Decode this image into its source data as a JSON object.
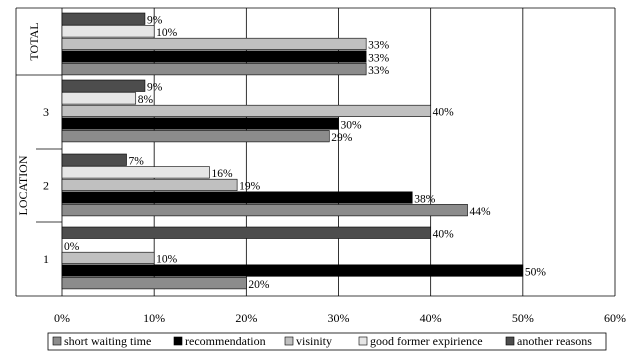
{
  "chart_data": {
    "type": "bar",
    "orientation": "horizontal",
    "ylabel": "LOCATION",
    "xlim": [
      0,
      60
    ],
    "xticks": [
      "0%",
      "10%",
      "20%",
      "30%",
      "40%",
      "50%",
      "60%"
    ],
    "grid": true,
    "legend_position": "bottom",
    "groups": [
      {
        "label": "TOTAL",
        "label_vertical": true,
        "series": [
          {
            "name": "another reasons",
            "value": 9,
            "label": "9%"
          },
          {
            "name": "good former expirience",
            "value": 10,
            "label": "10%"
          },
          {
            "name": "visinity",
            "value": 33,
            "label": "33%"
          },
          {
            "name": "recommendation",
            "value": 33,
            "label": "33%"
          },
          {
            "name": "short waiting time",
            "value": 33,
            "label": "33%"
          }
        ]
      },
      {
        "label": "3",
        "label_vertical": false,
        "series": [
          {
            "name": "another reasons",
            "value": 9,
            "label": "9%"
          },
          {
            "name": "good former expirience",
            "value": 8,
            "label": "8%"
          },
          {
            "name": "visinity",
            "value": 40,
            "label": "40%"
          },
          {
            "name": "recommendation",
            "value": 30,
            "label": "30%"
          },
          {
            "name": "short waiting time",
            "value": 29,
            "label": "29%"
          }
        ]
      },
      {
        "label": "2",
        "label_vertical": false,
        "series": [
          {
            "name": "another reasons",
            "value": 7,
            "label": "7%"
          },
          {
            "name": "good former expirience",
            "value": 16,
            "label": "16%"
          },
          {
            "name": "visinity",
            "value": 19,
            "label": "19%"
          },
          {
            "name": "recommendation",
            "value": 38,
            "label": "38%"
          },
          {
            "name": "short waiting time",
            "value": 44,
            "label": "44%"
          }
        ]
      },
      {
        "label": "1",
        "label_vertical": false,
        "series": [
          {
            "name": "another reasons",
            "value": 40,
            "label": "40%"
          },
          {
            "name": "good former expirience",
            "value": 0,
            "label": "0%"
          },
          {
            "name": "visinity",
            "value": 10,
            "label": "10%"
          },
          {
            "name": "recommendation",
            "value": 50,
            "label": "50%"
          },
          {
            "name": "short waiting time",
            "value": 20,
            "label": "20%"
          }
        ]
      }
    ],
    "legend": [
      {
        "name": "short waiting time",
        "color": "#8c8c8c"
      },
      {
        "name": "recommendation",
        "color": "#000000"
      },
      {
        "name": "visinity",
        "color": "#c0c0c0"
      },
      {
        "name": "good former expirience",
        "color": "#e6e6e6"
      },
      {
        "name": "another reasons",
        "color": "#4d4d4d"
      }
    ]
  }
}
